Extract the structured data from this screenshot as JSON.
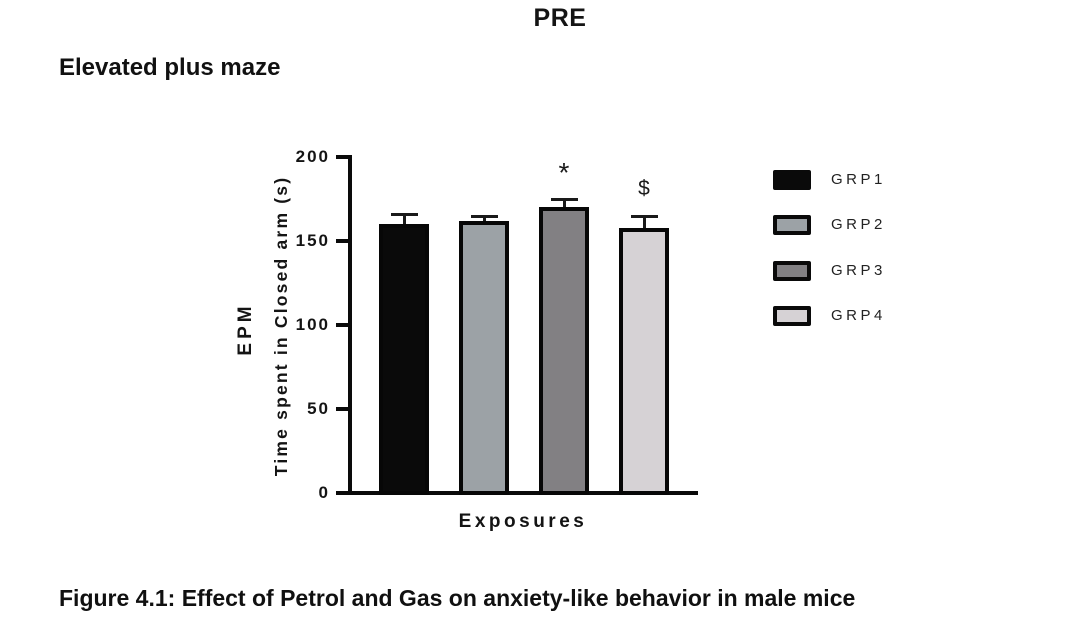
{
  "page": {
    "title": "PRE",
    "panel_title": "Elevated plus maze",
    "caption": "Figure 4.1: Effect of Petrol and Gas on anxiety-like behavior in male mice"
  },
  "chart_data": {
    "type": "bar",
    "title": "PRE",
    "subtitle": "Elevated plus maze",
    "xlabel": "Exposures",
    "ylabel": "Time spent in Closed arm (s)",
    "ylabel_outer": "EPM",
    "ylim": [
      0,
      200
    ],
    "yticks": [
      0,
      50,
      100,
      150,
      200
    ],
    "grid": false,
    "legend_position": "right",
    "categories": [
      "GRP1",
      "GRP2",
      "GRP3",
      "GRP4"
    ],
    "values": [
      160,
      162,
      170,
      158
    ],
    "errors": [
      6,
      3,
      5,
      7
    ],
    "error_type": "SEM",
    "annotations": [
      "",
      "",
      "*",
      "$"
    ],
    "bar_colors": [
      "#0a0a0a",
      "#9ca2a6",
      "#828083",
      "#d6d2d5"
    ],
    "caption": "Figure 4.1: Effect of Petrol and Gas on anxiety-like behavior in male mice"
  }
}
